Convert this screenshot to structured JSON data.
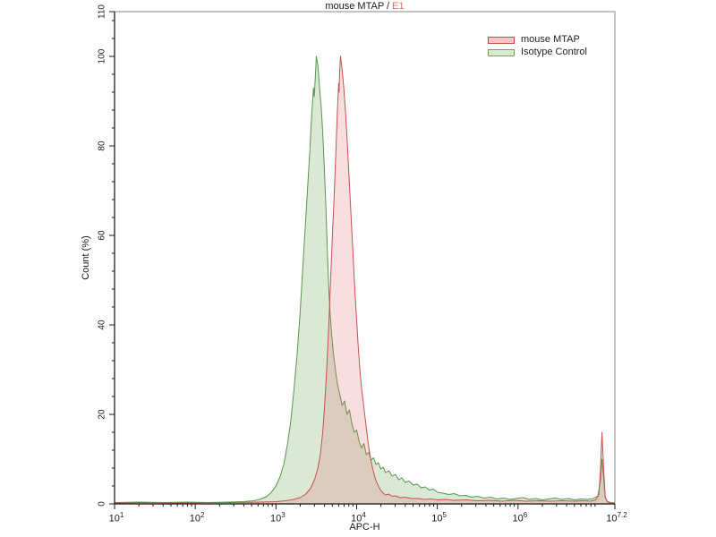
{
  "chart_data": {
    "type": "area",
    "variant": "flow-cytometry-overlay-histogram",
    "title_text": "mouse MTAP / ",
    "title_accent": "E1",
    "title_accent_color": "#e06a6a",
    "xlabel": "APC-H",
    "ylabel": "Count  (%)",
    "x_scale": "log10",
    "x_range_log": [
      1,
      7.2
    ],
    "ylim": [
      0,
      110
    ],
    "x_tick_base": "10",
    "x_major_ticks": [
      {
        "log": 1,
        "exp": "1"
      },
      {
        "log": 2,
        "exp": "2"
      },
      {
        "log": 3,
        "exp": "3"
      },
      {
        "log": 4,
        "exp": "4"
      },
      {
        "log": 5,
        "exp": "5"
      },
      {
        "log": 6,
        "exp": "6"
      },
      {
        "log": 7.2,
        "exp": "7.2"
      }
    ],
    "y_ticks": [
      0,
      20,
      40,
      60,
      80,
      100,
      110
    ],
    "y_minor_step": 4,
    "grid": "off",
    "legend_position": "top-right-inside",
    "series": [
      {
        "name": "Isotype Control",
        "line_color": "#58954f",
        "fill_color": "rgba(134,179,111,0.30)",
        "peak_log_x": 3.5,
        "peak_pct": 100,
        "points": [
          [
            1.0,
            0.3
          ],
          [
            1.3,
            0.4
          ],
          [
            1.6,
            0.3
          ],
          [
            1.9,
            0.4
          ],
          [
            2.15,
            0.3
          ],
          [
            2.4,
            0.4
          ],
          [
            2.6,
            0.5
          ],
          [
            2.72,
            0.7
          ],
          [
            2.8,
            1.0
          ],
          [
            2.88,
            1.6
          ],
          [
            2.94,
            2.5
          ],
          [
            3.0,
            4
          ],
          [
            3.05,
            6
          ],
          [
            3.1,
            9
          ],
          [
            3.14,
            13
          ],
          [
            3.18,
            18
          ],
          [
            3.22,
            25
          ],
          [
            3.26,
            33
          ],
          [
            3.3,
            43
          ],
          [
            3.33,
            52
          ],
          [
            3.36,
            61
          ],
          [
            3.39,
            70
          ],
          [
            3.42,
            79
          ],
          [
            3.44,
            86
          ],
          [
            3.455,
            90
          ],
          [
            3.465,
            93
          ],
          [
            3.475,
            91
          ],
          [
            3.49,
            96
          ],
          [
            3.5,
            100
          ],
          [
            3.52,
            98
          ],
          [
            3.54,
            93
          ],
          [
            3.56,
            89
          ],
          [
            3.58,
            83
          ],
          [
            3.6,
            75
          ],
          [
            3.62,
            66
          ],
          [
            3.64,
            55
          ],
          [
            3.655,
            48
          ],
          [
            3.67,
            43
          ],
          [
            3.69,
            38
          ],
          [
            3.71,
            34
          ],
          [
            3.73,
            31
          ],
          [
            3.76,
            27
          ],
          [
            3.79,
            24.5
          ],
          [
            3.82,
            22
          ],
          [
            3.85,
            23
          ],
          [
            3.88,
            20
          ],
          [
            3.91,
            21
          ],
          [
            3.94,
            18
          ],
          [
            3.97,
            16
          ],
          [
            4.0,
            16.5
          ],
          [
            4.03,
            14
          ],
          [
            4.06,
            12.5
          ],
          [
            4.09,
            13.5
          ],
          [
            4.12,
            11
          ],
          [
            4.15,
            11.5
          ],
          [
            4.18,
            9.8
          ],
          [
            4.21,
            10.3
          ],
          [
            4.24,
            8.8
          ],
          [
            4.27,
            9.2
          ],
          [
            4.3,
            7.8
          ],
          [
            4.33,
            8.2
          ],
          [
            4.36,
            7
          ],
          [
            4.4,
            7.4
          ],
          [
            4.44,
            6.2
          ],
          [
            4.48,
            6.6
          ],
          [
            4.52,
            5.4
          ],
          [
            4.56,
            5.8
          ],
          [
            4.6,
            4.8
          ],
          [
            4.65,
            5.1
          ],
          [
            4.7,
            4.2
          ],
          [
            4.75,
            4.4
          ],
          [
            4.8,
            3.6
          ],
          [
            4.85,
            3.8
          ],
          [
            4.9,
            3.1
          ],
          [
            4.95,
            3.3
          ],
          [
            5.0,
            2.6
          ],
          [
            5.07,
            2.4
          ],
          [
            5.14,
            2.1
          ],
          [
            5.21,
            2.3
          ],
          [
            5.28,
            1.8
          ],
          [
            5.35,
            1.9
          ],
          [
            5.42,
            1.5
          ],
          [
            5.5,
            1.7
          ],
          [
            5.58,
            1.3
          ],
          [
            5.66,
            1.5
          ],
          [
            5.74,
            1.1
          ],
          [
            5.82,
            1.3
          ],
          [
            5.9,
            1.0
          ],
          [
            5.98,
            1.2
          ],
          [
            6.06,
            1.4
          ],
          [
            6.14,
            1.0
          ],
          [
            6.22,
            1.2
          ],
          [
            6.3,
            0.9
          ],
          [
            6.38,
            1.1
          ],
          [
            6.46,
            1.3
          ],
          [
            6.54,
            1.0
          ],
          [
            6.62,
            1.2
          ],
          [
            6.7,
            0.9
          ],
          [
            6.78,
            1.1
          ],
          [
            6.86,
            1.0
          ],
          [
            6.93,
            1.2
          ],
          [
            6.99,
            1.8
          ],
          [
            7.02,
            5
          ],
          [
            7.04,
            10
          ],
          [
            7.06,
            6
          ],
          [
            7.08,
            1.5
          ],
          [
            7.11,
            0.5
          ],
          [
            7.15,
            0.3
          ],
          [
            7.2,
            0.2
          ]
        ]
      },
      {
        "name": "mouse MTAP",
        "line_color": "#c9504e",
        "fill_color": "rgba(228,105,110,0.22)",
        "peak_log_x": 3.8,
        "peak_pct": 100,
        "points": [
          [
            1.0,
            0.2
          ],
          [
            1.4,
            0.3
          ],
          [
            1.8,
            0.2
          ],
          [
            2.2,
            0.3
          ],
          [
            2.5,
            0.3
          ],
          [
            2.8,
            0.4
          ],
          [
            3.0,
            0.5
          ],
          [
            3.12,
            0.7
          ],
          [
            3.22,
            1.0
          ],
          [
            3.3,
            1.4
          ],
          [
            3.37,
            2.2
          ],
          [
            3.43,
            3.5
          ],
          [
            3.48,
            5.5
          ],
          [
            3.52,
            8
          ],
          [
            3.55,
            11
          ],
          [
            3.58,
            16
          ],
          [
            3.6,
            21
          ],
          [
            3.62,
            27
          ],
          [
            3.64,
            34
          ],
          [
            3.66,
            42
          ],
          [
            3.68,
            51
          ],
          [
            3.7,
            60
          ],
          [
            3.72,
            68
          ],
          [
            3.735,
            75
          ],
          [
            3.75,
            82
          ],
          [
            3.76,
            87
          ],
          [
            3.77,
            91
          ],
          [
            3.777,
            94
          ],
          [
            3.783,
            92
          ],
          [
            3.79,
            97
          ],
          [
            3.8,
            100
          ],
          [
            3.82,
            97
          ],
          [
            3.84,
            93
          ],
          [
            3.86,
            88
          ],
          [
            3.88,
            82
          ],
          [
            3.9,
            75
          ],
          [
            3.92,
            68
          ],
          [
            3.94,
            61
          ],
          [
            3.96,
            54
          ],
          [
            3.98,
            47
          ],
          [
            4.0,
            41
          ],
          [
            4.02,
            35
          ],
          [
            4.04,
            30
          ],
          [
            4.06,
            26
          ],
          [
            4.08,
            23
          ],
          [
            4.1,
            20
          ],
          [
            4.12,
            17
          ],
          [
            4.14,
            14
          ],
          [
            4.16,
            11.5
          ],
          [
            4.18,
            9.5
          ],
          [
            4.2,
            7.8
          ],
          [
            4.22,
            6.4
          ],
          [
            4.24,
            5.2
          ],
          [
            4.27,
            4.0
          ],
          [
            4.3,
            3.0
          ],
          [
            4.33,
            2.4
          ],
          [
            4.36,
            2.0
          ],
          [
            4.4,
            2.2
          ],
          [
            4.44,
            1.7
          ],
          [
            4.48,
            1.8
          ],
          [
            4.54,
            1.4
          ],
          [
            4.6,
            1.5
          ],
          [
            4.68,
            1.2
          ],
          [
            4.76,
            1.2
          ],
          [
            4.84,
            1.0
          ],
          [
            4.92,
            1.1
          ],
          [
            5.0,
            0.9
          ],
          [
            5.1,
            1.0
          ],
          [
            5.2,
            0.8
          ],
          [
            5.35,
            0.9
          ],
          [
            5.5,
            0.7
          ],
          [
            5.65,
            0.8
          ],
          [
            5.8,
            0.6
          ],
          [
            5.95,
            0.8
          ],
          [
            6.1,
            0.6
          ],
          [
            6.25,
            0.7
          ],
          [
            6.4,
            0.6
          ],
          [
            6.55,
            0.7
          ],
          [
            6.7,
            0.6
          ],
          [
            6.8,
            0.7
          ],
          [
            6.9,
            0.6
          ],
          [
            6.96,
            0.9
          ],
          [
            7.0,
            2
          ],
          [
            7.02,
            7
          ],
          [
            7.04,
            16
          ],
          [
            7.06,
            8
          ],
          [
            7.08,
            1.5
          ],
          [
            7.11,
            0.4
          ],
          [
            7.15,
            0.2
          ],
          [
            7.2,
            0.15
          ]
        ]
      }
    ]
  },
  "legend": {
    "items": [
      {
        "label": "mouse MTAP",
        "fill": "#f2c6c6",
        "stroke": "#c0504d"
      },
      {
        "label": "Isotype Control",
        "fill": "#d9ead0",
        "stroke": "#71a35c"
      }
    ]
  }
}
